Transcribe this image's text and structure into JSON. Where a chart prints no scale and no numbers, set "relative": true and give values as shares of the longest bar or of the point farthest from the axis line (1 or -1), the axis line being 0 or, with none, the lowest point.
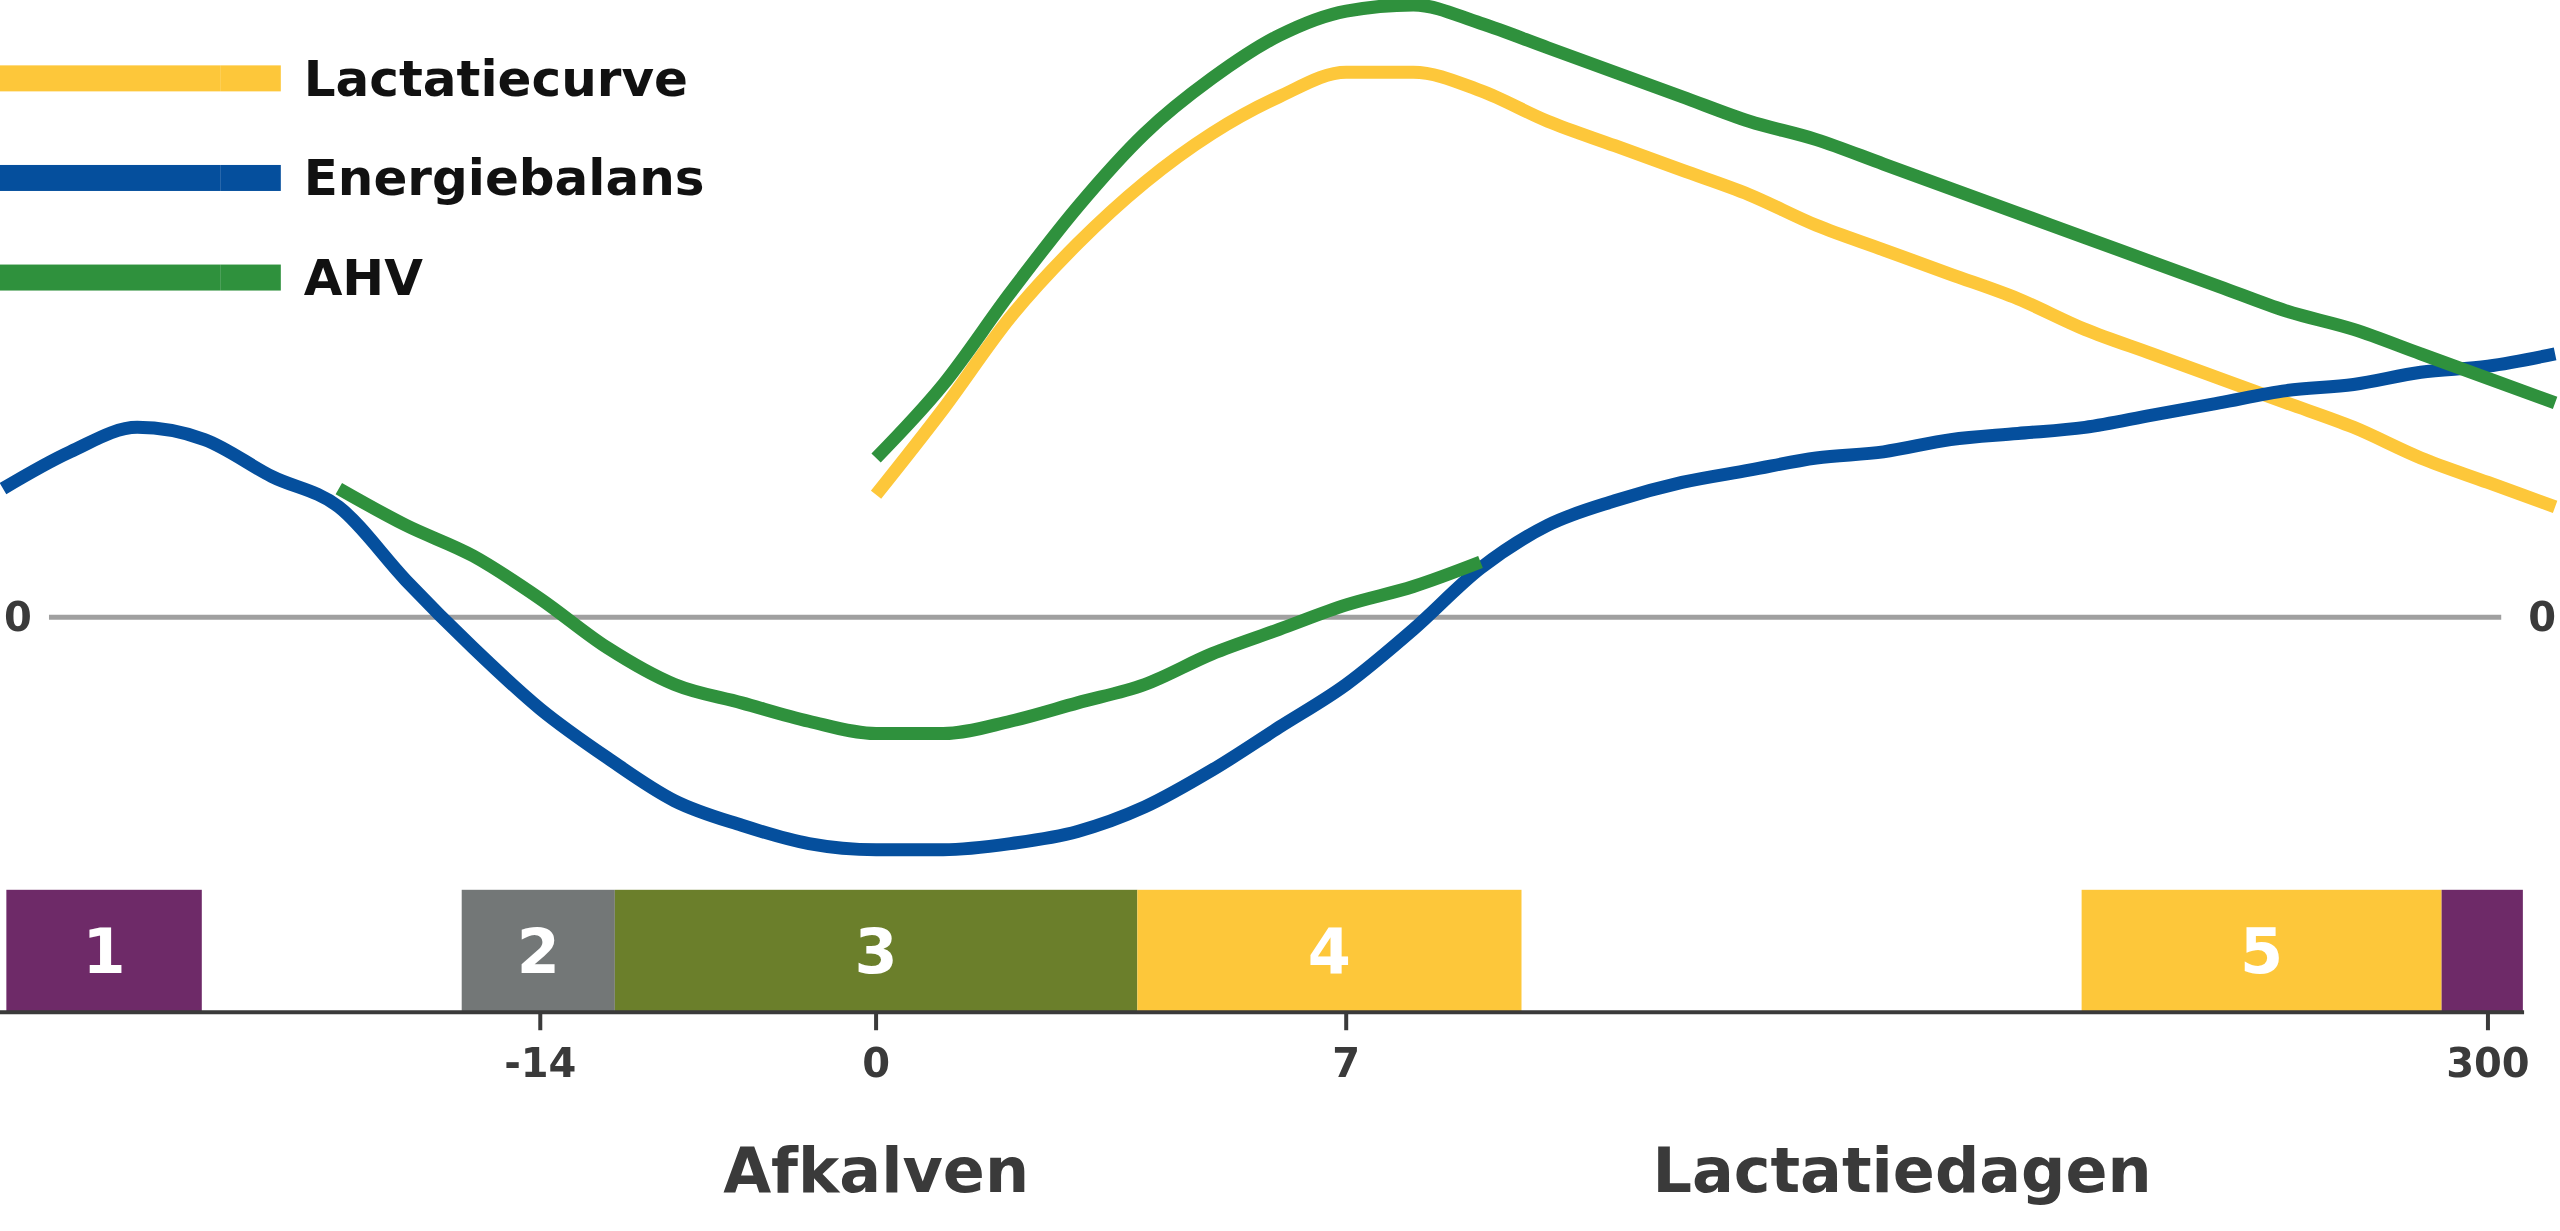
{
  "chart_data": {
    "type": "line",
    "relative": true,
    "categories": [
      null,
      null,
      null,
      null,
      null,
      null,
      null,
      null,
      "-14",
      null,
      null,
      null,
      null,
      "0",
      null,
      null,
      null,
      null,
      null,
      null,
      "7",
      null,
      null,
      null,
      null,
      null,
      null,
      null,
      null,
      null,
      null,
      null,
      null,
      null,
      null,
      null,
      null,
      "300",
      null
    ],
    "series": [
      {
        "name": "Lactatiecurve",
        "color": "#fdc73a",
        "values": [
          null,
          null,
          null,
          null,
          null,
          null,
          null,
          null,
          null,
          null,
          null,
          null,
          null,
          0.2,
          0.34,
          0.49,
          0.61,
          0.71,
          0.79,
          0.85,
          0.89,
          0.89,
          0.86,
          0.81,
          0.77,
          0.73,
          0.69,
          0.64,
          0.6,
          0.56,
          0.52,
          0.47,
          0.43,
          0.39,
          0.35,
          0.31,
          0.26,
          0.22,
          0.18
        ]
      },
      {
        "name": "Energiebalans",
        "color": "#054f9d",
        "values": [
          0.21,
          0.27,
          0.31,
          0.29,
          0.23,
          0.18,
          0.06,
          -0.05,
          -0.15,
          -0.23,
          -0.3,
          -0.34,
          -0.37,
          -0.38,
          -0.38,
          -0.37,
          -0.35,
          -0.31,
          -0.25,
          -0.18,
          -0.11,
          -0.02,
          0.08,
          0.15,
          0.19,
          0.22,
          0.24,
          0.26,
          0.27,
          0.29,
          0.3,
          0.31,
          0.33,
          0.35,
          0.37,
          0.38,
          0.4,
          0.41,
          0.43
        ]
      },
      {
        "name": "AHV",
        "color": "#2f913d",
        "values": [
          null,
          null,
          null,
          null,
          null,
          null,
          null,
          null,
          null,
          null,
          null,
          null,
          null,
          0.26,
          0.38,
          0.53,
          0.67,
          0.79,
          0.88,
          0.95,
          0.99,
          1.0,
          0.97,
          0.93,
          0.89,
          0.85,
          0.81,
          0.78,
          0.74,
          0.7,
          0.66,
          0.62,
          0.58,
          0.54,
          0.5,
          0.47,
          0.43,
          0.39,
          0.35
        ]
      },
      {
        "color": "#2f913d",
        "values": [
          null,
          null,
          null,
          null,
          null,
          0.21,
          0.15,
          0.1,
          0.03,
          -0.05,
          -0.11,
          -0.14,
          -0.17,
          -0.19,
          -0.19,
          -0.17,
          -0.14,
          -0.11,
          -0.06,
          -0.02,
          0.02,
          0.05,
          0.09,
          null,
          null,
          null,
          null,
          null,
          null,
          null,
          null,
          null,
          null,
          null,
          null,
          null,
          null,
          null,
          null
        ]
      }
    ],
    "ref_lines": [
      {
        "axis": "y",
        "value": 0,
        "label": "0",
        "color": "#a0a0a0"
      }
    ],
    "xlabel": "Lactatiedagen",
    "annotations": [
      "Afkalven",
      "1",
      "2",
      "3",
      "4",
      "5"
    ],
    "legend": "top left"
  }
}
